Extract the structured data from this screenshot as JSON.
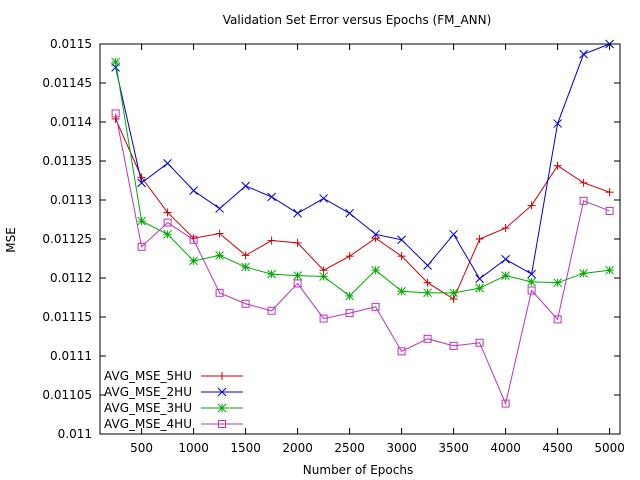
{
  "chart_data": {
    "type": "line",
    "title": "Validation Set Error versus Epochs (FM_ANN)",
    "xlabel": "Number of Epochs",
    "ylabel": "MSE",
    "xlim": [
      100,
      5100
    ],
    "ylim": [
      0.011,
      0.0115
    ],
    "xticks": [
      500,
      1000,
      1500,
      2000,
      2500,
      3000,
      3500,
      4000,
      4500,
      5000
    ],
    "xtick_labels": [
      "500",
      "1000",
      "1500",
      "2000",
      "2500",
      "3000",
      "3500",
      "4000",
      "4500",
      "5000"
    ],
    "yticks": [
      0.011,
      0.01105,
      0.0111,
      0.01115,
      0.0112,
      0.01125,
      0.0113,
      0.01135,
      0.0114,
      0.01145,
      0.0115
    ],
    "ytick_labels": [
      "0.011",
      "0.01105",
      "0.0111",
      "0.01115",
      "0.0112",
      "0.01125",
      "0.0113",
      "0.01135",
      "0.0114",
      "0.01145",
      "0.0115"
    ],
    "grid": false,
    "legend_position": "bottom-left",
    "x": [
      250,
      500,
      750,
      1000,
      1250,
      1500,
      1750,
      2000,
      2250,
      2500,
      2750,
      3000,
      3250,
      3500,
      3750,
      4000,
      4250,
      4500,
      4750,
      5000
    ],
    "series": [
      {
        "name": "AVG_MSE_5HU",
        "color": "#cc0000",
        "marker": "plus",
        "values": [
          0.011404,
          0.011329,
          0.011284,
          0.011251,
          0.011257,
          0.011229,
          0.011248,
          0.011245,
          0.01121,
          0.011228,
          0.011251,
          0.011228,
          0.011194,
          0.011173,
          0.01125,
          0.011264,
          0.011293,
          0.011344,
          0.011322,
          0.01131
        ]
      },
      {
        "name": "AVG_MSE_2HU",
        "color": "#0000cc",
        "marker": "cross",
        "values": [
          0.01147,
          0.011322,
          0.011347,
          0.011312,
          0.011289,
          0.011318,
          0.011304,
          0.011283,
          0.011302,
          0.011283,
          0.011256,
          0.011249,
          0.011216,
          0.011256,
          0.011199,
          0.011224,
          0.011205,
          0.011398,
          0.011487,
          0.0115
        ]
      },
      {
        "name": "AVG_MSE_3HU",
        "color": "#00aa00",
        "marker": "star",
        "values": [
          0.011477,
          0.011273,
          0.011256,
          0.011222,
          0.011229,
          0.011214,
          0.011205,
          0.011203,
          0.011202,
          0.011177,
          0.01121,
          0.011183,
          0.011181,
          0.011181,
          0.011187,
          0.011203,
          0.011195,
          0.011194,
          0.011206,
          0.01121
        ]
      },
      {
        "name": "AVG_MSE_4HU",
        "color": "#bb33bb",
        "marker": "square",
        "values": [
          0.011411,
          0.01124,
          0.011271,
          0.011249,
          0.011181,
          0.011167,
          0.011158,
          0.011193,
          0.011148,
          0.011155,
          0.011163,
          0.011106,
          0.011122,
          0.011113,
          0.011117,
          0.011039,
          0.011184,
          0.011147,
          0.011299,
          0.011286
        ]
      }
    ]
  }
}
